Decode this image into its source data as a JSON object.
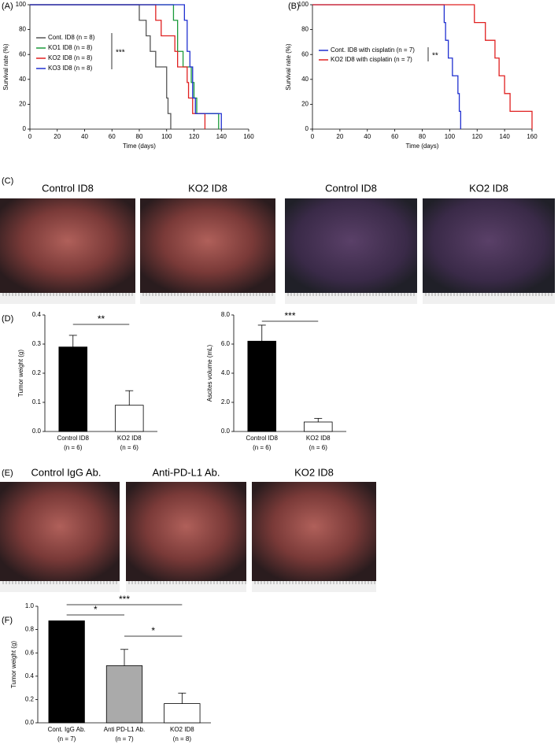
{
  "chart_data": [
    {
      "type": "line",
      "step": true,
      "panel_label": "(A)",
      "x_label": "Time (days)",
      "y_label": "Survival rate (%)",
      "xlim": [
        0,
        160
      ],
      "xticks": [
        0,
        20,
        40,
        60,
        80,
        100,
        120,
        140,
        160
      ],
      "ylim": [
        0,
        100
      ],
      "yticks": [
        0,
        20,
        40,
        60,
        80,
        100
      ],
      "series": [
        {
          "name": "Cont. ID8 (n = 8)",
          "color": "#555555",
          "x": [
            0,
            80,
            85,
            88,
            92,
            100,
            101,
            103
          ],
          "values": [
            100,
            87.5,
            75,
            62.5,
            50,
            25,
            12.5,
            0
          ]
        },
        {
          "name": "KO1 ID8 (n = 8)",
          "color": "#1a9a3a",
          "x": [
            0,
            105,
            108,
            112,
            118,
            120,
            122,
            138
          ],
          "values": [
            100,
            87.5,
            62.5,
            50,
            37.5,
            25,
            12.5,
            0
          ]
        },
        {
          "name": "KO2 ID8 (n = 8)",
          "color": "#e02020",
          "x": [
            0,
            92,
            96,
            106,
            108,
            115,
            116,
            119,
            128
          ],
          "values": [
            100,
            87.5,
            75,
            62.5,
            50,
            37.5,
            25,
            12.5,
            0
          ]
        },
        {
          "name": "KO3 ID8 (n = 8)",
          "color": "#2030d0",
          "x": [
            0,
            113,
            115,
            117,
            119,
            121,
            140
          ],
          "values": [
            100,
            87.5,
            62.5,
            50,
            25,
            12.5,
            0
          ]
        }
      ],
      "annotations": [
        "***"
      ]
    },
    {
      "type": "line",
      "step": true,
      "panel_label": "(B)",
      "x_label": "Time (days)",
      "y_label": "Survival rate (%)",
      "xlim": [
        0,
        160
      ],
      "xticks": [
        0,
        20,
        40,
        60,
        80,
        100,
        120,
        140,
        160
      ],
      "ylim": [
        0,
        100
      ],
      "yticks": [
        0,
        20,
        40,
        60,
        80,
        100
      ],
      "series": [
        {
          "name": "Cont. ID8 with cisplatin (n = 7)",
          "color": "#2030d0",
          "x": [
            0,
            96,
            97,
            99,
            102,
            106,
            107,
            108
          ],
          "values": [
            100,
            85.7,
            71.4,
            57.1,
            42.9,
            28.6,
            14.3,
            0
          ]
        },
        {
          "name": "KO2 ID8 with cisplatin  (n = 7)",
          "color": "#e02020",
          "x": [
            0,
            118,
            126,
            133,
            136,
            140,
            144,
            160
          ],
          "values": [
            100,
            85.7,
            71.4,
            57.1,
            42.9,
            28.6,
            14.3,
            0
          ]
        }
      ],
      "annotations": [
        "**"
      ]
    },
    {
      "type": "bar",
      "panel_label": "(D)",
      "y_label": "Tumor weight (g)",
      "categories": [
        "Control ID8",
        "KO2 ID8"
      ],
      "category_sublabels": [
        "(n = 6)",
        "(n = 6)"
      ],
      "values": [
        0.29,
        0.09
      ],
      "errors": [
        0.04,
        0.05
      ],
      "colors": [
        "#000000",
        "#ffffff"
      ],
      "ylim": [
        0,
        0.4
      ],
      "yticks": [
        {
          "value": 0,
          "label": "0.0"
        },
        0.1,
        0.2,
        0.3,
        0.4
      ],
      "annotations": [
        "**"
      ]
    },
    {
      "type": "bar",
      "y_label": "Ascites volume (mL)",
      "categories": [
        "Control ID8",
        "KO2 ID8"
      ],
      "category_sublabels": [
        "(n = 6)",
        "(n = 6)"
      ],
      "values": [
        6.2,
        0.65
      ],
      "errors": [
        1.1,
        0.25
      ],
      "colors": [
        "#000000",
        "#ffffff"
      ],
      "ylim": [
        0,
        8
      ],
      "yticks": [
        {
          "value": 0,
          "label": "0.0"
        },
        {
          "value": 2,
          "label": "2.0"
        },
        {
          "value": 4,
          "label": "4.0"
        },
        {
          "value": 6,
          "label": "6.0"
        },
        {
          "value": 8,
          "label": "8.0"
        }
      ],
      "annotations": [
        "***"
      ]
    },
    {
      "type": "bar",
      "panel_label": "(F)",
      "y_label": "Tumor weight (g)",
      "categories": [
        "Cont. IgG Ab.",
        "Anti PD-L1 Ab.",
        "KO2 ID8"
      ],
      "category_sublabels": [
        "(n = 7)",
        "(n = 7)",
        "(n = 8)"
      ],
      "values": [
        0.875,
        0.49,
        0.165
      ],
      "errors": [
        null,
        0.14,
        0.09
      ],
      "colors": [
        "#000000",
        "#aaaaaa",
        "#ffffff"
      ],
      "ylim": [
        0,
        1
      ],
      "yticks": [
        {
          "value": 0,
          "label": "0.0"
        },
        0.2,
        0.4,
        0.6,
        0.8,
        {
          "value": 1,
          "label": "1.0"
        }
      ],
      "annotations": [
        "*",
        "*",
        "***"
      ]
    }
  ],
  "photo_panels": [
    {
      "label": "(C)",
      "captions": [
        "Control ID8",
        "KO2 ID8",
        "Control ID8",
        "KO2 ID8"
      ]
    },
    {
      "label": "(E)",
      "captions": [
        "Control IgG Ab.",
        "Anti-PD-L1 Ab.",
        "KO2 ID8"
      ]
    }
  ]
}
